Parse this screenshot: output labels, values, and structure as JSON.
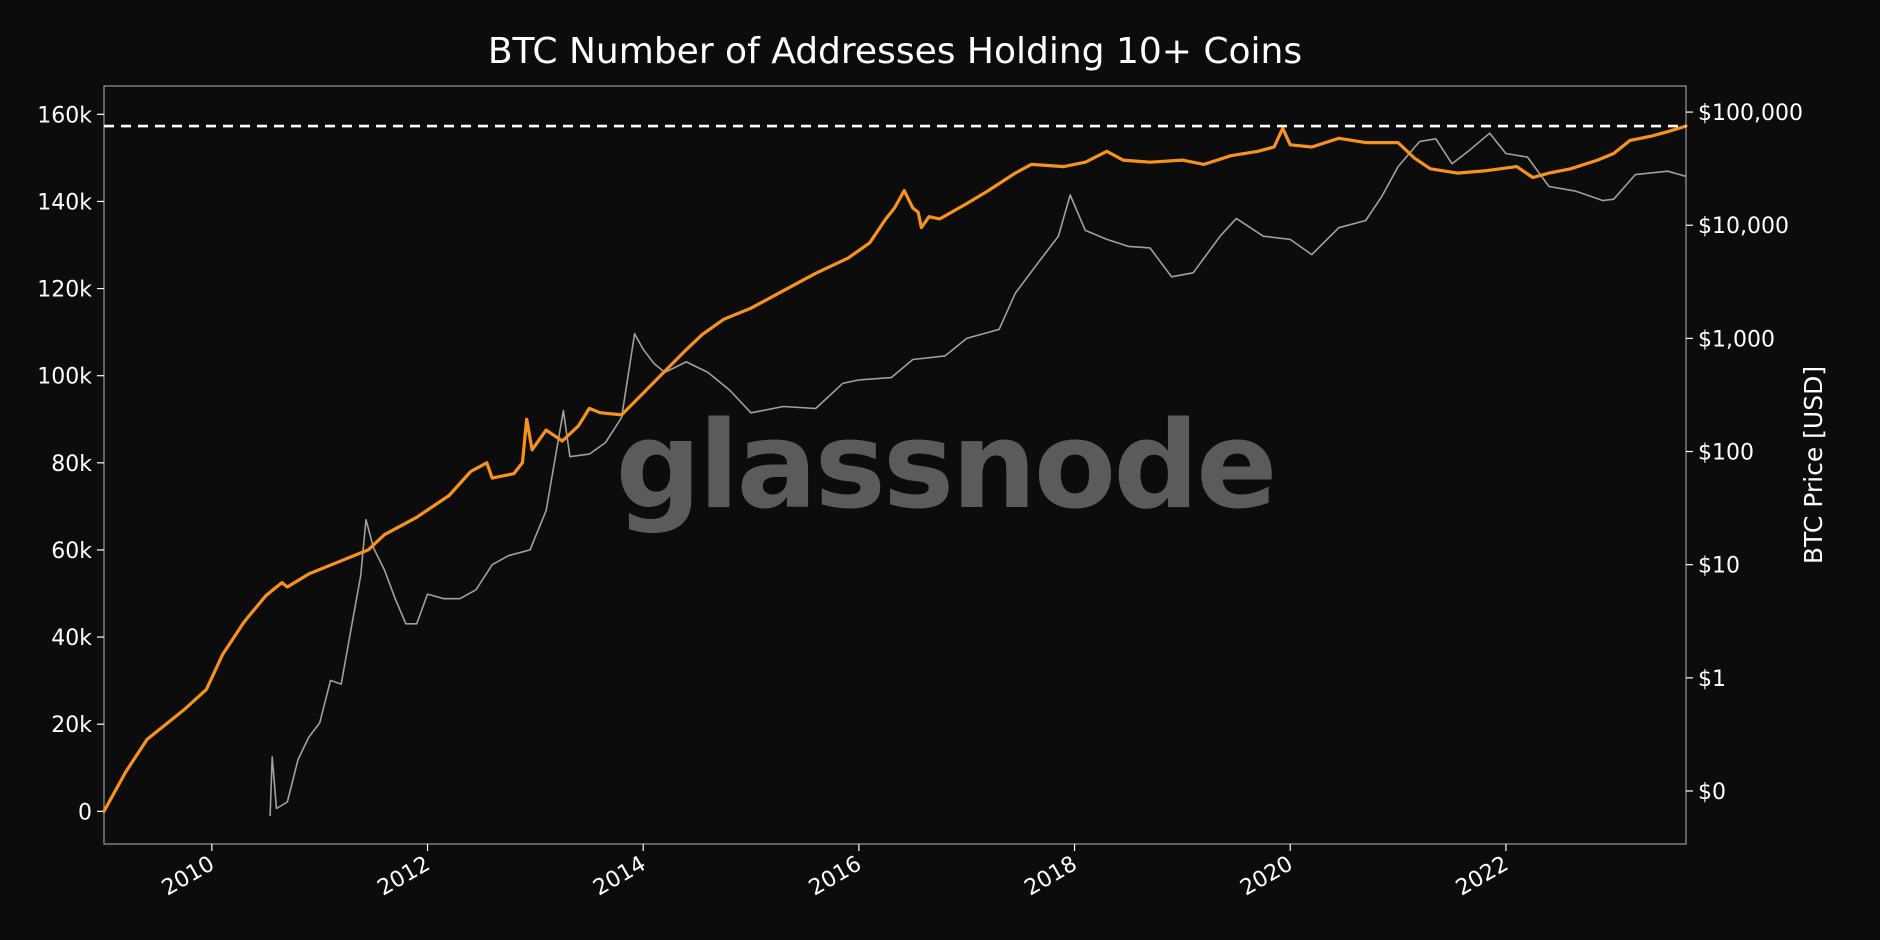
{
  "chart_data": {
    "type": "line",
    "title": "BTC Number of Addresses Holding 10+ Coins",
    "watermark": "glassnode",
    "y_left": {
      "label": "",
      "ticks": [
        0,
        20000,
        40000,
        60000,
        80000,
        100000,
        120000,
        140000,
        160000
      ],
      "tick_labels": [
        "0",
        "20k",
        "40k",
        "60k",
        "80k",
        "100k",
        "120k",
        "140k",
        "160k"
      ],
      "range": [
        -7500,
        166500
      ]
    },
    "y_right": {
      "label": "BTC Price [USD]",
      "scale": "log",
      "ticks": [
        0.1,
        1,
        10,
        100,
        1000,
        10000,
        100000
      ],
      "tick_labels": [
        "$0",
        "$1",
        "$10",
        "$100",
        "$1,000",
        "$10,000",
        "$100,000"
      ],
      "range": [
        0.034,
        170000
      ]
    },
    "x_axis": {
      "ticks": [
        2010,
        2012,
        2014,
        2016,
        2018,
        2020,
        2022
      ],
      "tick_labels": [
        "2010",
        "2012",
        "2014",
        "2016",
        "2018",
        "2020",
        "2022"
      ],
      "range": [
        2009.0,
        2023.67
      ]
    },
    "ath_line": {
      "value": 157300,
      "color": "#ffffff",
      "style": "dashed"
    },
    "series": [
      {
        "axis": "left",
        "color": "#f7931a",
        "points": [
          [
            2009.0,
            0
          ],
          [
            2009.2,
            9000
          ],
          [
            2009.4,
            16500
          ],
          [
            2009.55,
            19500
          ],
          [
            2009.75,
            23500
          ],
          [
            2009.95,
            28000
          ],
          [
            2010.1,
            36000
          ],
          [
            2010.3,
            43500
          ],
          [
            2010.5,
            49500
          ],
          [
            2010.65,
            52500
          ],
          [
            2010.7,
            51500
          ],
          [
            2010.9,
            54500
          ],
          [
            2011.2,
            57500
          ],
          [
            2011.45,
            60000
          ],
          [
            2011.6,
            63500
          ],
          [
            2011.9,
            67500
          ],
          [
            2012.2,
            72500
          ],
          [
            2012.4,
            78000
          ],
          [
            2012.55,
            80000
          ],
          [
            2012.6,
            76500
          ],
          [
            2012.8,
            77500
          ],
          [
            2012.88,
            80000
          ],
          [
            2012.92,
            90000
          ],
          [
            2012.97,
            83000
          ],
          [
            2013.1,
            87500
          ],
          [
            2013.25,
            85000
          ],
          [
            2013.4,
            88500
          ],
          [
            2013.5,
            92500
          ],
          [
            2013.6,
            91500
          ],
          [
            2013.8,
            91000
          ],
          [
            2014.0,
            96000
          ],
          [
            2014.2,
            101000
          ],
          [
            2014.4,
            106000
          ],
          [
            2014.55,
            109500
          ],
          [
            2014.75,
            113000
          ],
          [
            2015.0,
            115500
          ],
          [
            2015.3,
            119500
          ],
          [
            2015.6,
            123500
          ],
          [
            2015.9,
            127000
          ],
          [
            2016.1,
            130500
          ],
          [
            2016.25,
            136000
          ],
          [
            2016.33,
            138500
          ],
          [
            2016.42,
            142500
          ],
          [
            2016.5,
            138500
          ],
          [
            2016.55,
            137500
          ],
          [
            2016.58,
            134000
          ],
          [
            2016.65,
            136500
          ],
          [
            2016.75,
            136000
          ],
          [
            2017.0,
            139500
          ],
          [
            2017.2,
            142500
          ],
          [
            2017.45,
            146500
          ],
          [
            2017.6,
            148500
          ],
          [
            2017.9,
            148000
          ],
          [
            2018.1,
            149000
          ],
          [
            2018.3,
            151500
          ],
          [
            2018.45,
            149500
          ],
          [
            2018.7,
            149000
          ],
          [
            2019.0,
            149500
          ],
          [
            2019.2,
            148500
          ],
          [
            2019.45,
            150500
          ],
          [
            2019.7,
            151500
          ],
          [
            2019.85,
            152500
          ],
          [
            2019.93,
            156800
          ],
          [
            2020.0,
            153000
          ],
          [
            2020.2,
            152500
          ],
          [
            2020.45,
            154500
          ],
          [
            2020.7,
            153500
          ],
          [
            2021.0,
            153500
          ],
          [
            2021.15,
            150000
          ],
          [
            2021.3,
            147500
          ],
          [
            2021.55,
            146500
          ],
          [
            2021.8,
            147000
          ],
          [
            2022.1,
            148000
          ],
          [
            2022.25,
            145500
          ],
          [
            2022.4,
            146500
          ],
          [
            2022.6,
            147500
          ],
          [
            2022.85,
            149500
          ],
          [
            2023.0,
            151000
          ],
          [
            2023.15,
            154000
          ],
          [
            2023.35,
            155000
          ],
          [
            2023.5,
            156000
          ],
          [
            2023.67,
            157300
          ]
        ]
      },
      {
        "axis": "right",
        "color": "#a0a0a0",
        "points": [
          [
            2010.54,
            0.06
          ],
          [
            2010.56,
            0.2
          ],
          [
            2010.6,
            0.07
          ],
          [
            2010.7,
            0.08
          ],
          [
            2010.8,
            0.19
          ],
          [
            2010.9,
            0.3
          ],
          [
            2011.0,
            0.4
          ],
          [
            2011.1,
            0.95
          ],
          [
            2011.2,
            0.88
          ],
          [
            2011.3,
            3.0
          ],
          [
            2011.38,
            8.0
          ],
          [
            2011.43,
            25.0
          ],
          [
            2011.5,
            14.0
          ],
          [
            2011.6,
            9.0
          ],
          [
            2011.7,
            5.0
          ],
          [
            2011.8,
            3.0
          ],
          [
            2011.9,
            3.0
          ],
          [
            2012.0,
            5.5
          ],
          [
            2012.15,
            5.0
          ],
          [
            2012.3,
            5.0
          ],
          [
            2012.45,
            6.0
          ],
          [
            2012.6,
            10.0
          ],
          [
            2012.75,
            12.0
          ],
          [
            2012.95,
            13.5
          ],
          [
            2013.1,
            30.0
          ],
          [
            2013.26,
            230.0
          ],
          [
            2013.32,
            90.0
          ],
          [
            2013.5,
            95.0
          ],
          [
            2013.65,
            120.0
          ],
          [
            2013.8,
            200.0
          ],
          [
            2013.92,
            1100.0
          ],
          [
            2014.0,
            800.0
          ],
          [
            2014.1,
            600.0
          ],
          [
            2014.2,
            500.0
          ],
          [
            2014.4,
            620.0
          ],
          [
            2014.6,
            500.0
          ],
          [
            2014.8,
            350.0
          ],
          [
            2015.0,
            220.0
          ],
          [
            2015.3,
            250.0
          ],
          [
            2015.6,
            240.0
          ],
          [
            2015.85,
            400.0
          ],
          [
            2016.0,
            430.0
          ],
          [
            2016.3,
            450.0
          ],
          [
            2016.5,
            650.0
          ],
          [
            2016.8,
            700.0
          ],
          [
            2017.0,
            1000.0
          ],
          [
            2017.3,
            1200.0
          ],
          [
            2017.45,
            2500.0
          ],
          [
            2017.65,
            4500.0
          ],
          [
            2017.85,
            8000.0
          ],
          [
            2017.96,
            18500.0
          ],
          [
            2018.1,
            9000.0
          ],
          [
            2018.3,
            7500.0
          ],
          [
            2018.5,
            6500.0
          ],
          [
            2018.7,
            6300.0
          ],
          [
            2018.9,
            3500.0
          ],
          [
            2019.1,
            3800.0
          ],
          [
            2019.35,
            8000.0
          ],
          [
            2019.5,
            11500.0
          ],
          [
            2019.75,
            8000.0
          ],
          [
            2020.0,
            7500.0
          ],
          [
            2020.2,
            5500.0
          ],
          [
            2020.45,
            9500.0
          ],
          [
            2020.7,
            11000.0
          ],
          [
            2020.85,
            18000.0
          ],
          [
            2021.0,
            33000.0
          ],
          [
            2021.2,
            55000.0
          ],
          [
            2021.35,
            58000.0
          ],
          [
            2021.5,
            35000.0
          ],
          [
            2021.65,
            45000.0
          ],
          [
            2021.85,
            65000.0
          ],
          [
            2022.0,
            43000.0
          ],
          [
            2022.2,
            40000.0
          ],
          [
            2022.4,
            22000.0
          ],
          [
            2022.65,
            20000.0
          ],
          [
            2022.9,
            16500.0
          ],
          [
            2023.0,
            17000.0
          ],
          [
            2023.2,
            28000.0
          ],
          [
            2023.5,
            30000.0
          ],
          [
            2023.67,
            27000.0
          ]
        ]
      }
    ]
  }
}
